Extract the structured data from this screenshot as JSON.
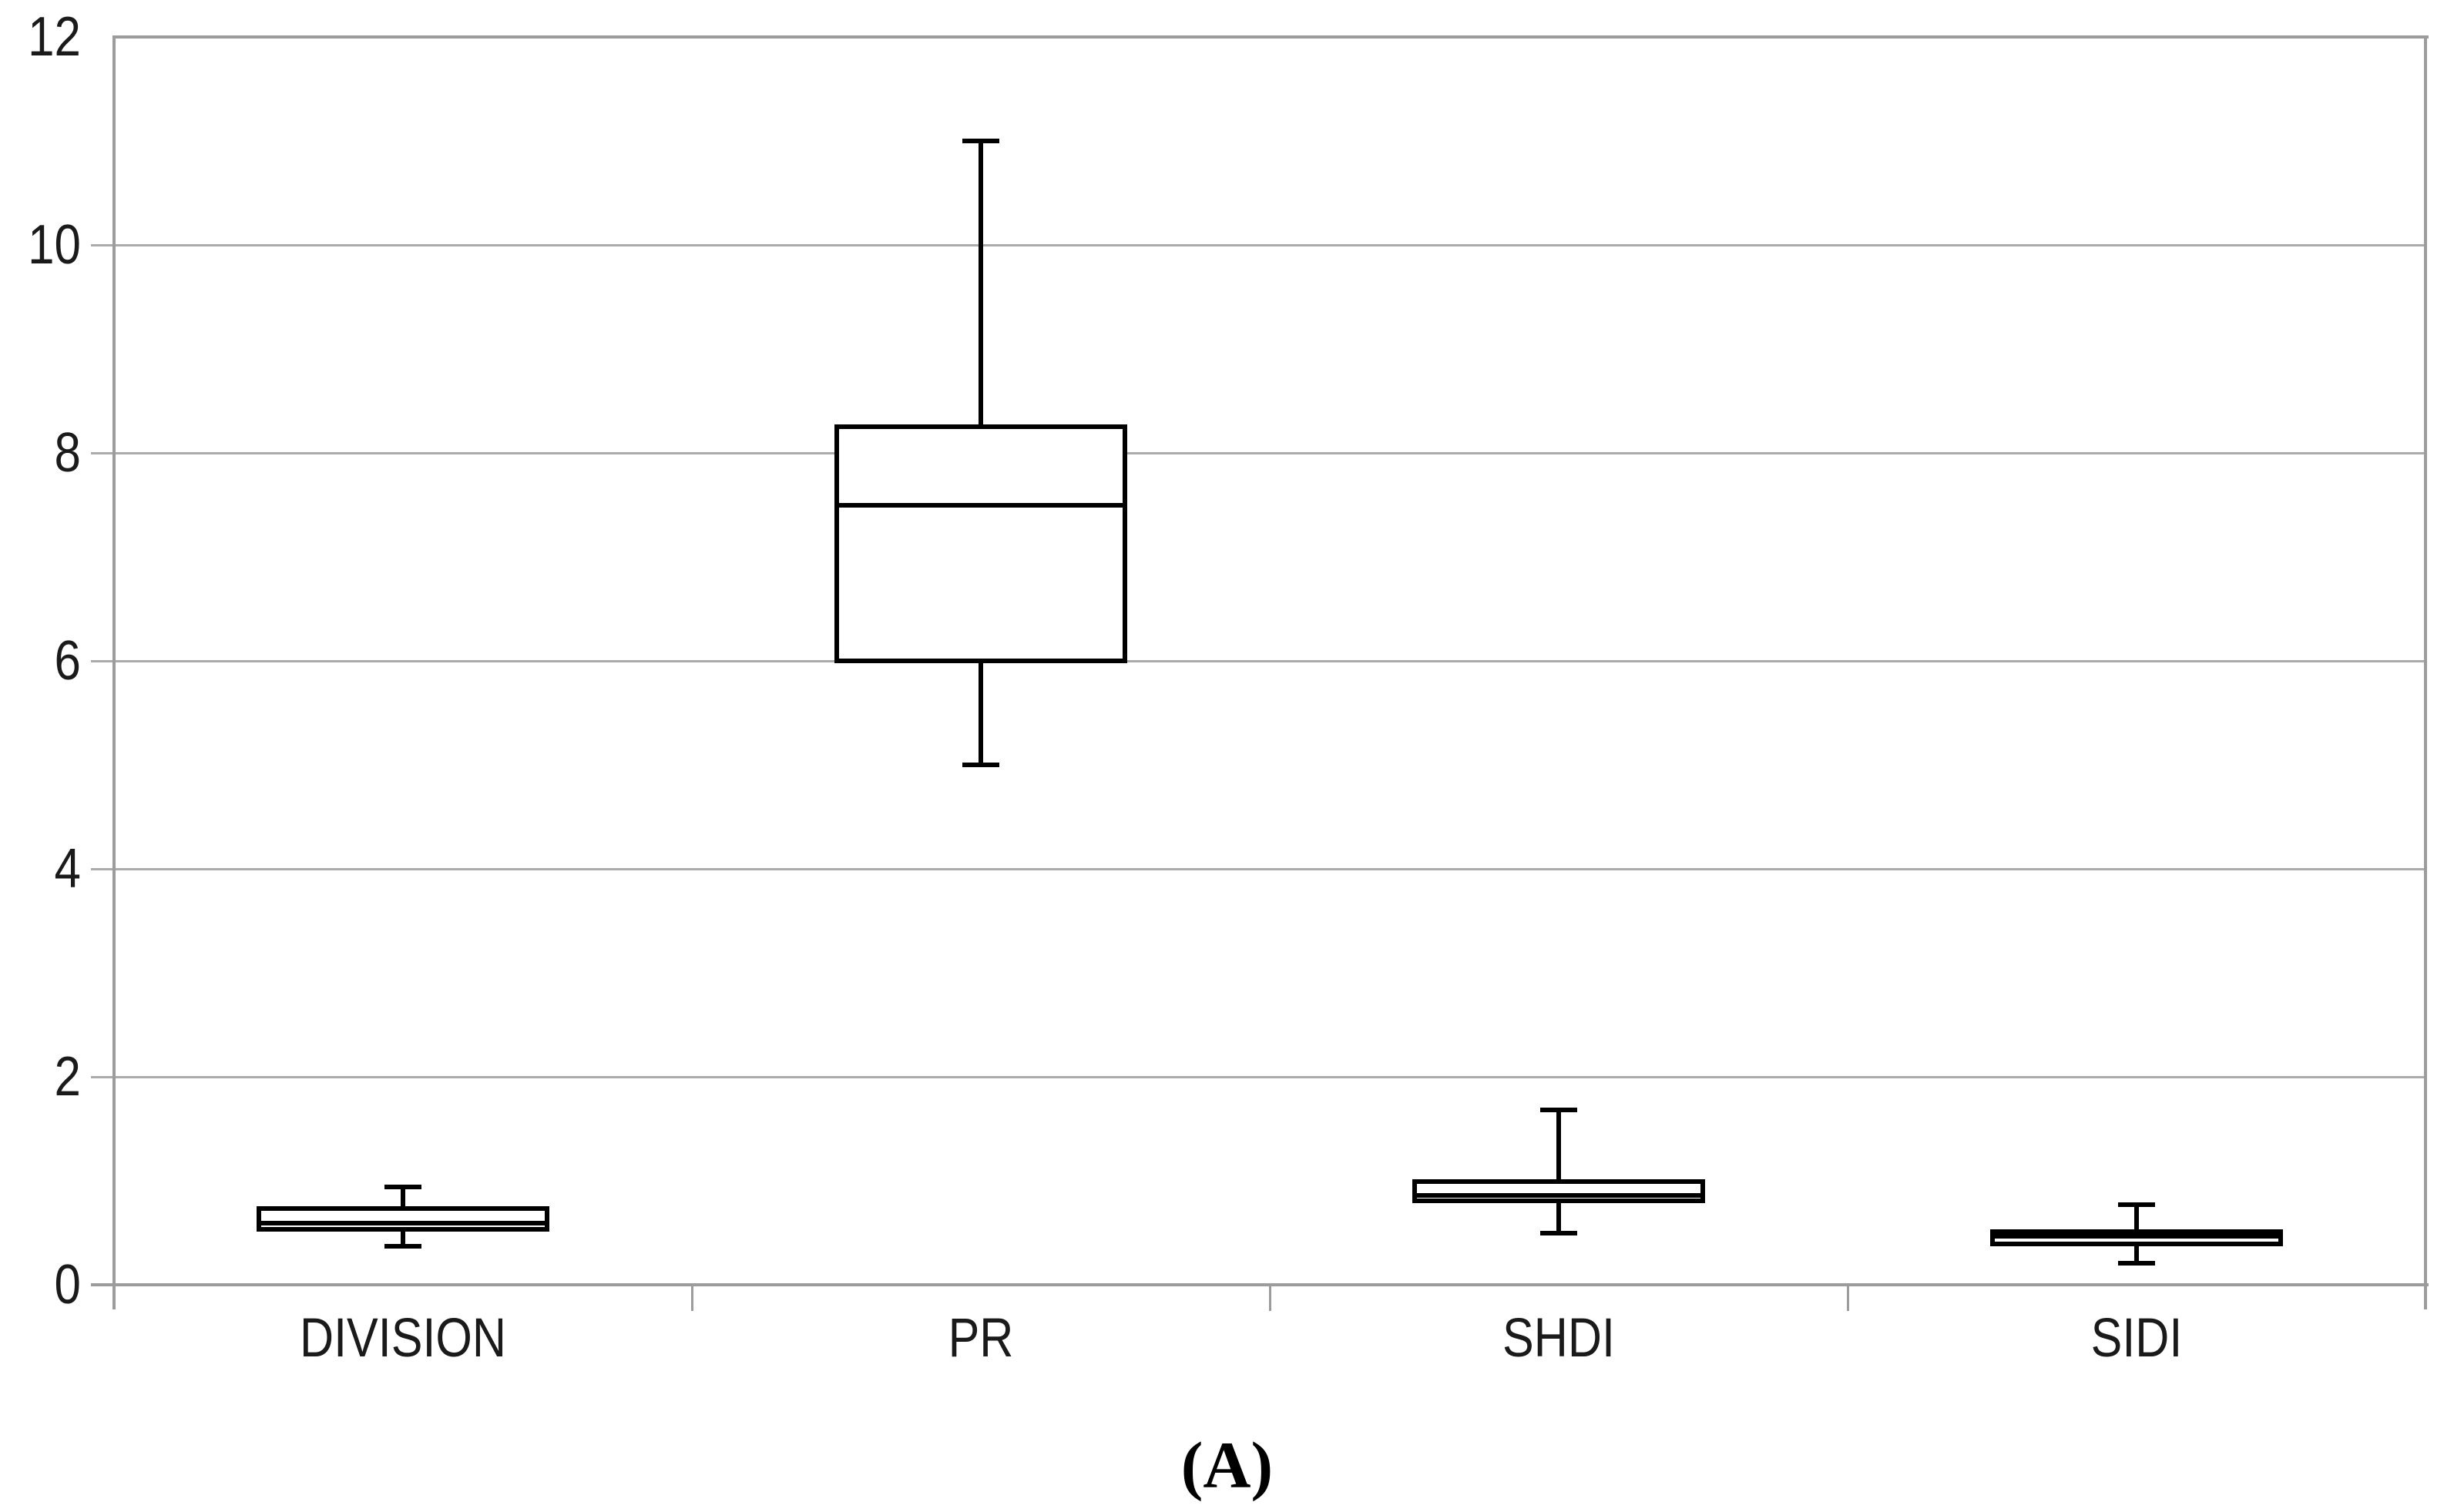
{
  "figure": {
    "caption": "(A)",
    "background": "#ffffff"
  },
  "chart_data": {
    "type": "box",
    "title": "",
    "xlabel": "",
    "ylabel": "",
    "categories": [
      "DIVISION",
      "PR",
      "SHDI",
      "SIDI"
    ],
    "series": [
      {
        "name": "DIVISION",
        "min": 0.37,
        "q1": 0.53,
        "median": 0.59,
        "q3": 0.73,
        "max": 0.94
      },
      {
        "name": "PR",
        "min": 5,
        "q1": 6,
        "median": 7.5,
        "q3": 8.25,
        "max": 11
      },
      {
        "name": "SHDI",
        "min": 0.5,
        "q1": 0.81,
        "median": 0.86,
        "q3": 0.99,
        "max": 1.68
      },
      {
        "name": "SIDI",
        "min": 0.21,
        "q1": 0.39,
        "median": 0.47,
        "q3": 0.51,
        "max": 0.77
      }
    ],
    "ylim": [
      0,
      12
    ],
    "y_ticks": [
      0,
      2,
      4,
      6,
      8,
      10,
      12
    ],
    "y_tick_labels": [
      "0",
      "2",
      "4",
      "6",
      "8",
      "10",
      "12"
    ],
    "grid": true,
    "legend": "none",
    "colors": {
      "box_stroke": "#000000",
      "box_fill": "#ffffff",
      "gridline": "#ababab",
      "axis": "#9c9c9c",
      "text": "#1a1a1a"
    }
  }
}
